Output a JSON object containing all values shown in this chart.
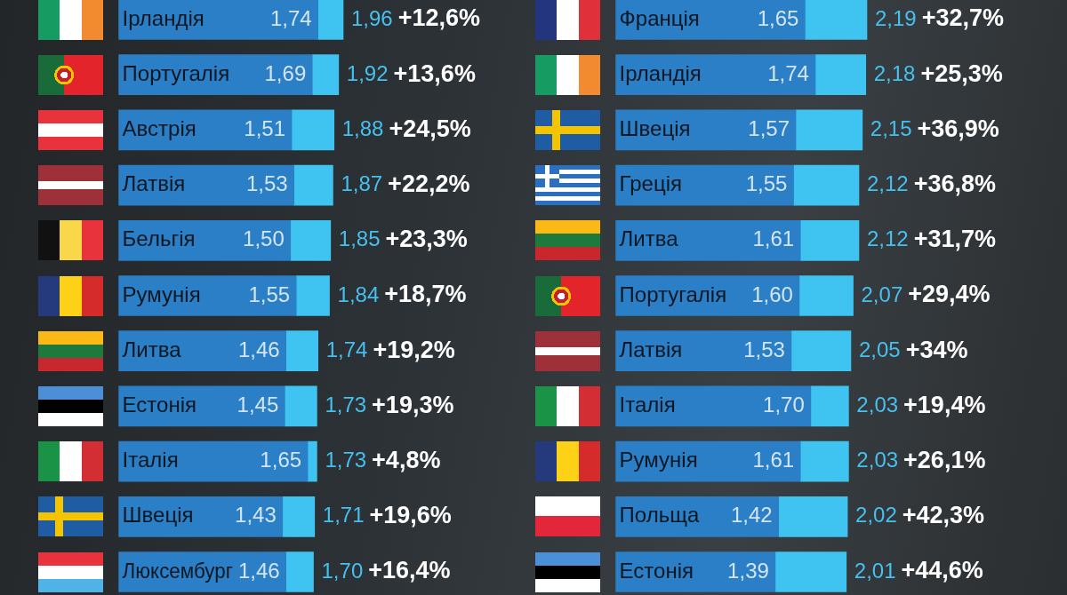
{
  "chart_data": [
    {
      "type": "bar",
      "orientation": "horizontal",
      "stacked": true,
      "tick_labels": "y",
      "categories": [
        "Ірландія",
        "Португалія",
        "Австрія",
        "Латвія",
        "Бельгія",
        "Румунія",
        "Литва",
        "Естонія",
        "Італія",
        "Швеція",
        "Люксембург"
      ],
      "series": [
        {
          "color": "#2a7fc6",
          "values": [
            1.74,
            1.69,
            1.51,
            1.53,
            1.5,
            1.55,
            1.46,
            1.45,
            1.65,
            1.43,
            1.46
          ],
          "value_labels": [
            "1,74",
            "1,69",
            "1,51",
            "1,53",
            "1,50",
            "1,55",
            "1,46",
            "1,45",
            "1,65",
            "1,43",
            "1,46"
          ]
        },
        {
          "color": "#3fc3f1",
          "values": [
            0.22,
            0.23,
            0.37,
            0.34,
            0.35,
            0.29,
            0.28,
            0.28,
            0.08,
            0.28,
            0.24
          ]
        }
      ],
      "totals": [
        "1,96",
        "1,92",
        "1,88",
        "1,87",
        "1,85",
        "1,84",
        "1,74",
        "1,73",
        "1,73",
        "1,71",
        "1,70"
      ],
      "annotations": [
        {
          "text": "+12,6%",
          "x": 1.96,
          "y": "Ірландія"
        },
        {
          "text": "+13,6%",
          "x": 1.92,
          "y": "Португалія"
        },
        {
          "text": "+24,5%",
          "x": 1.88,
          "y": "Австрія"
        },
        {
          "text": "+22,2%",
          "x": 1.87,
          "y": "Латвія"
        },
        {
          "text": "+23,3%",
          "x": 1.85,
          "y": "Бельгія"
        },
        {
          "text": "+18,7%",
          "x": 1.84,
          "y": "Румунія"
        },
        {
          "text": "+19,2%",
          "x": 1.74,
          "y": "Литва"
        },
        {
          "text": "+19,3%",
          "x": 1.73,
          "y": "Естонія"
        },
        {
          "text": "+4,8%",
          "x": 1.73,
          "y": "Італія"
        },
        {
          "text": "+19,6%",
          "x": 1.71,
          "y": "Швеція"
        },
        {
          "text": "+16,4%",
          "x": 1.7,
          "y": "Люксембург"
        }
      ]
    },
    {
      "type": "bar",
      "orientation": "horizontal",
      "stacked": true,
      "tick_labels": "y",
      "categories": [
        "Франція",
        "Ірландія",
        "Швеція",
        "Греція",
        "Литва",
        "Португалія",
        "Латвія",
        "Італія",
        "Румунія",
        "Польща",
        "Естонія"
      ],
      "series": [
        {
          "color": "#2a7fc6",
          "values": [
            1.65,
            1.74,
            1.57,
            1.55,
            1.61,
            1.6,
            1.53,
            1.7,
            1.61,
            1.42,
            1.39
          ],
          "value_labels": [
            "1,65",
            "1,74",
            "1,57",
            "1,55",
            "1,61",
            "1,60",
            "1,53",
            "1,70",
            "1,61",
            "1,42",
            "1,39"
          ]
        },
        {
          "color": "#3fc3f1",
          "values": [
            0.54,
            0.44,
            0.58,
            0.57,
            0.51,
            0.47,
            0.52,
            0.33,
            0.42,
            0.6,
            0.62
          ]
        }
      ],
      "totals": [
        "2,19",
        "2,18",
        "2,15",
        "2,12",
        "2,12",
        "2,07",
        "2,05",
        "2,03",
        "2,03",
        "2,02",
        "2,01"
      ],
      "annotations": [
        {
          "text": "+32,7%",
          "x": 2.19,
          "y": "Франція"
        },
        {
          "text": "+25,3%",
          "x": 2.18,
          "y": "Ірландія"
        },
        {
          "text": "+36,9%",
          "x": 2.15,
          "y": "Швеція"
        },
        {
          "text": "+36,8%",
          "x": 2.12,
          "y": "Греція"
        },
        {
          "text": "+31,7%",
          "x": 2.12,
          "y": "Литва"
        },
        {
          "text": "+29,4%",
          "x": 2.07,
          "y": "Португалія"
        },
        {
          "text": "+34%",
          "x": 2.05,
          "y": "Латвія"
        },
        {
          "text": "+19,4%",
          "x": 2.03,
          "y": "Італія"
        },
        {
          "text": "+26,1%",
          "x": 2.03,
          "y": "Румунія"
        },
        {
          "text": "+42,3%",
          "x": 2.02,
          "y": "Польща"
        },
        {
          "text": "+44,6%",
          "x": 2.01,
          "y": "Естонія"
        }
      ]
    }
  ]
}
